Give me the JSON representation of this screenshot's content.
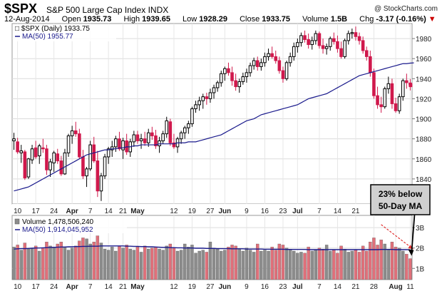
{
  "header": {
    "symbol": "$SPX",
    "name": "S&P 500 Large Cap Index",
    "exchange": "INDX",
    "source": "@ StockCharts.com",
    "date": "12-Aug-2014",
    "open_label": "Open",
    "open": "1935.73",
    "high_label": "High",
    "high": "1939.65",
    "low_label": "Low",
    "low": "1928.29",
    "close_label": "Close",
    "close": "1933.75",
    "volume_label": "Volume",
    "volume": "1.5B",
    "chg_label": "Chg",
    "chg": "-3.17 (-0.16%)"
  },
  "colors": {
    "up": "#000000",
    "down": "#d0184c",
    "ma": "#1a1a8c",
    "vol_down": "#e0707a",
    "vol_up": "#8c8c8c",
    "callout_bg": "#d0d0d0",
    "annotation_arrow": "#e03030"
  },
  "chart_data": [
    {
      "type": "candlestick",
      "legend": [
        "$SPX (Daily) 1933.75",
        "MA(50) 1955.77"
      ],
      "y_ticks": [
        "1840",
        "1860",
        "1880",
        "1900",
        "1920",
        "1940",
        "1960",
        "1980"
      ],
      "ylim": [
        1815,
        1995
      ],
      "x_labels": [
        "10",
        "17",
        "24",
        "Apr",
        "7",
        "14",
        "21",
        "May",
        "12",
        "19",
        "27",
        "Jun",
        "9",
        "16",
        "23",
        "Jul",
        "7",
        "14",
        "21",
        "28",
        "Aug",
        "11"
      ],
      "x_label_index": [
        1,
        6,
        11,
        16,
        21,
        26,
        30,
        34,
        44,
        49,
        54,
        58,
        64,
        69,
        74,
        78,
        84,
        89,
        94,
        99,
        105,
        109
      ],
      "grid": true,
      "ohlc": [
        [
          1878,
          1886,
          1869,
          1880
        ],
        [
          1877,
          1881,
          1865,
          1867
        ],
        [
          1866,
          1874,
          1856,
          1868
        ],
        [
          1867,
          1869,
          1839,
          1841
        ],
        [
          1842,
          1861,
          1840,
          1860
        ],
        [
          1859,
          1874,
          1855,
          1870
        ],
        [
          1871,
          1878,
          1860,
          1862
        ],
        [
          1863,
          1875,
          1855,
          1873
        ],
        [
          1871,
          1880,
          1866,
          1870
        ],
        [
          1870,
          1874,
          1844,
          1849
        ],
        [
          1849,
          1860,
          1842,
          1857
        ],
        [
          1856,
          1868,
          1847,
          1866
        ],
        [
          1865,
          1870,
          1855,
          1858
        ],
        [
          1858,
          1863,
          1843,
          1845
        ],
        [
          1845,
          1870,
          1844,
          1866
        ],
        [
          1866,
          1885,
          1862,
          1883
        ],
        [
          1883,
          1893,
          1875,
          1888
        ],
        [
          1888,
          1897,
          1882,
          1885
        ],
        [
          1885,
          1890,
          1860,
          1862
        ],
        [
          1862,
          1869,
          1840,
          1843
        ],
        [
          1843,
          1852,
          1832,
          1850
        ],
        [
          1850,
          1878,
          1848,
          1874
        ],
        [
          1874,
          1882,
          1856,
          1858
        ],
        [
          1858,
          1868,
          1822,
          1828
        ],
        [
          1828,
          1846,
          1818,
          1843
        ],
        [
          1843,
          1865,
          1840,
          1862
        ],
        [
          1862,
          1872,
          1855,
          1870
        ],
        [
          1869,
          1878,
          1862,
          1872
        ],
        [
          1872,
          1883,
          1867,
          1880
        ],
        [
          1880,
          1887,
          1868,
          1870
        ],
        [
          1869,
          1881,
          1860,
          1878
        ],
        [
          1878,
          1885,
          1864,
          1867
        ],
        [
          1867,
          1880,
          1862,
          1877
        ],
        [
          1877,
          1888,
          1872,
          1884
        ],
        [
          1884,
          1888,
          1875,
          1878
        ],
        [
          1878,
          1885,
          1870,
          1880
        ],
        [
          1880,
          1887,
          1873,
          1876
        ],
        [
          1876,
          1890,
          1872,
          1886
        ],
        [
          1886,
          1892,
          1879,
          1883
        ],
        [
          1883,
          1889,
          1870,
          1873
        ],
        [
          1873,
          1882,
          1866,
          1878
        ],
        [
          1878,
          1888,
          1875,
          1885
        ],
        [
          1885,
          1902,
          1881,
          1898
        ],
        [
          1897,
          1900,
          1873,
          1876
        ],
        [
          1876,
          1885,
          1870,
          1872
        ],
        [
          1872,
          1882,
          1866,
          1880
        ],
        [
          1880,
          1888,
          1875,
          1886
        ],
        [
          1886,
          1893,
          1880,
          1891
        ],
        [
          1891,
          1898,
          1885,
          1895
        ],
        [
          1895,
          1912,
          1892,
          1910
        ],
        [
          1910,
          1918,
          1906,
          1914
        ],
        [
          1914,
          1922,
          1908,
          1918
        ],
        [
          1918,
          1925,
          1910,
          1922
        ],
        [
          1922,
          1926,
          1914,
          1920
        ],
        [
          1920,
          1930,
          1916,
          1926
        ],
        [
          1926,
          1934,
          1920,
          1931
        ],
        [
          1931,
          1938,
          1927,
          1936
        ],
        [
          1936,
          1948,
          1932,
          1945
        ],
        [
          1945,
          1952,
          1938,
          1950
        ],
        [
          1950,
          1956,
          1943,
          1946
        ],
        [
          1946,
          1952,
          1933,
          1938
        ],
        [
          1938,
          1945,
          1928,
          1932
        ],
        [
          1932,
          1940,
          1926,
          1937
        ],
        [
          1937,
          1946,
          1934,
          1942
        ],
        [
          1942,
          1950,
          1936,
          1946
        ],
        [
          1946,
          1956,
          1942,
          1953
        ],
        [
          1953,
          1961,
          1949,
          1958
        ],
        [
          1958,
          1962,
          1948,
          1952
        ],
        [
          1952,
          1960,
          1948,
          1956
        ],
        [
          1956,
          1966,
          1952,
          1962
        ],
        [
          1962,
          1970,
          1958,
          1965
        ],
        [
          1965,
          1972,
          1960,
          1962
        ],
        [
          1962,
          1968,
          1955,
          1958
        ],
        [
          1958,
          1962,
          1945,
          1948
        ],
        [
          1948,
          1952,
          1936,
          1940
        ],
        [
          1940,
          1958,
          1938,
          1956
        ],
        [
          1956,
          1966,
          1952,
          1962
        ],
        [
          1962,
          1976,
          1958,
          1972
        ],
        [
          1972,
          1980,
          1966,
          1976
        ],
        [
          1976,
          1986,
          1972,
          1983
        ],
        [
          1983,
          1988,
          1976,
          1979
        ],
        [
          1979,
          1985,
          1970,
          1974
        ],
        [
          1974,
          1982,
          1969,
          1978
        ],
        [
          1978,
          1988,
          1974,
          1985
        ],
        [
          1985,
          1987,
          1970,
          1973
        ],
        [
          1973,
          1980,
          1965,
          1970
        ],
        [
          1970,
          1975,
          1964,
          1972
        ],
        [
          1972,
          1982,
          1968,
          1980
        ],
        [
          1980,
          1986,
          1974,
          1977
        ],
        [
          1977,
          1983,
          1966,
          1970
        ],
        [
          1970,
          1977,
          1960,
          1962
        ],
        [
          1962,
          1980,
          1960,
          1978
        ],
        [
          1978,
          1988,
          1974,
          1985
        ],
        [
          1985,
          1990,
          1980,
          1986
        ],
        [
          1986,
          1992,
          1978,
          1982
        ],
        [
          1982,
          1986,
          1974,
          1978
        ],
        [
          1978,
          1982,
          1965,
          1968
        ],
        [
          1968,
          1972,
          1958,
          1962
        ],
        [
          1962,
          1968,
          1942,
          1946
        ],
        [
          1946,
          1950,
          1920,
          1923
        ],
        [
          1923,
          1932,
          1910,
          1914
        ],
        [
          1914,
          1922,
          1906,
          1912
        ],
        [
          1912,
          1932,
          1910,
          1930
        ],
        [
          1930,
          1942,
          1925,
          1935
        ],
        [
          1935,
          1940,
          1910,
          1915
        ],
        [
          1915,
          1921,
          1906,
          1908
        ],
        [
          1908,
          1925,
          1905,
          1922
        ],
        [
          1922,
          1940,
          1918,
          1938
        ],
        [
          1938,
          1945,
          1930,
          1936
        ],
        [
          1935.73,
          1939.65,
          1928.29,
          1933.75
        ]
      ],
      "ma50": [
        1828,
        1829,
        1830,
        1831,
        1832,
        1834,
        1836,
        1838,
        1840,
        1842,
        1844,
        1846,
        1848,
        1850,
        1852,
        1854,
        1856,
        1858,
        1860,
        1862,
        1864,
        1865,
        1866,
        1867,
        1868,
        1869,
        1869,
        1870,
        1870,
        1871,
        1871,
        1872,
        1872,
        1873,
        1873,
        1874,
        1874,
        1874,
        1874,
        1874,
        1875,
        1875,
        1875,
        1875,
        1875,
        1876,
        1876,
        1876,
        1877,
        1877,
        1877,
        1878,
        1879,
        1880,
        1881,
        1882,
        1883,
        1884,
        1886,
        1888,
        1890,
        1892,
        1894,
        1896,
        1898,
        1899,
        1900,
        1902,
        1904,
        1905,
        1906,
        1907,
        1908,
        1909,
        1910,
        1911,
        1912,
        1913,
        1914,
        1916,
        1918,
        1920,
        1921,
        1922,
        1923,
        1924,
        1925,
        1927,
        1929,
        1931,
        1933,
        1935,
        1937,
        1939,
        1941,
        1943,
        1944,
        1945,
        1946,
        1947,
        1948,
        1949,
        1950,
        1951,
        1952,
        1953,
        1954,
        1955,
        1955,
        1955.5,
        1955.77
      ]
    },
    {
      "type": "bar",
      "legend": [
        "Volume 1,478,506,240",
        "MA(50) 1,914,045,952"
      ],
      "y_ticks": [
        "1B",
        "2B",
        "3B"
      ],
      "ylim": [
        0.45,
        3.6
      ],
      "unit": "billions of shares",
      "x_labels": [
        "10",
        "17",
        "24",
        "Apr",
        "7",
        "14",
        "21",
        "May",
        "12",
        "19",
        "27",
        "Jun",
        "9",
        "16",
        "23",
        "Jul",
        "7",
        "14",
        "21",
        "28",
        "Aug",
        "11"
      ],
      "x_label_index": [
        1,
        6,
        11,
        16,
        21,
        26,
        30,
        34,
        44,
        49,
        54,
        58,
        64,
        69,
        74,
        78,
        84,
        89,
        94,
        99,
        105,
        109
      ],
      "volume": [
        2.05,
        2.15,
        1.9,
        2.25,
        1.95,
        2.0,
        2.1,
        1.85,
        2.0,
        2.3,
        2.1,
        2.05,
        2.2,
        2.3,
        2.05,
        1.9,
        2.0,
        2.1,
        2.35,
        2.5,
        2.45,
        2.2,
        2.3,
        2.6,
        2.25,
        1.95,
        1.9,
        2.05,
        1.85,
        2.1,
        2.0,
        2.15,
        1.95,
        1.9,
        2.05,
        1.8,
        2.1,
        1.95,
        2.0,
        2.05,
        1.95,
        1.9,
        2.1,
        2.2,
        2.0,
        1.85,
        1.9,
        2.2,
        2.05,
        2.15,
        1.75,
        1.85,
        1.9,
        1.8,
        2.3,
        2.0,
        1.95,
        1.85,
        1.9,
        2.05,
        2.15,
        2.1,
        1.95,
        1.85,
        2.0,
        1.9,
        1.8,
        2.2,
        1.85,
        1.9,
        1.85,
        2.05,
        1.9,
        2.2,
        2.15,
        2.0,
        1.95,
        1.85,
        1.75,
        1.8,
        1.75,
        2.05,
        1.85,
        1.9,
        2.0,
        1.95,
        2.15,
        1.85,
        1.9,
        1.75,
        2.1,
        1.95,
        1.8,
        1.85,
        1.9,
        1.8,
        2.1,
        1.85,
        2.3,
        2.5,
        2.15,
        2.4,
        2.2,
        1.95,
        2.3,
        2.05,
        2.0,
        1.85,
        1.7,
        1.48
      ],
      "vol_ma50": [
        1.95,
        1.96,
        1.97,
        1.97,
        1.98,
        1.99,
        2.0,
        2.0,
        2.01,
        2.02,
        2.03,
        2.03,
        2.04,
        2.05,
        2.05,
        2.06,
        2.06,
        2.07,
        2.07,
        2.08,
        2.08,
        2.09,
        2.09,
        2.09,
        2.1,
        2.1,
        2.1,
        2.1,
        2.1,
        2.1,
        2.1,
        2.09,
        2.09,
        2.08,
        2.08,
        2.07,
        2.07,
        2.06,
        2.06,
        2.05,
        2.04,
        2.03,
        2.03,
        2.02,
        2.02,
        2.01,
        2.01,
        2.0,
        2.0,
        2.0,
        1.99,
        1.99,
        1.99,
        1.98,
        1.98,
        1.98,
        1.97,
        1.97,
        1.97,
        1.97,
        1.96,
        1.96,
        1.96,
        1.96,
        1.95,
        1.95,
        1.95,
        1.95,
        1.95,
        1.94,
        1.94,
        1.94,
        1.94,
        1.94,
        1.94,
        1.93,
        1.93,
        1.93,
        1.93,
        1.93,
        1.93,
        1.92,
        1.92,
        1.92,
        1.92,
        1.92,
        1.92,
        1.92,
        1.92,
        1.92,
        1.92,
        1.92,
        1.92,
        1.92,
        1.92,
        1.92,
        1.92,
        1.92,
        1.92,
        1.92,
        1.92,
        1.93,
        1.93,
        1.93,
        1.93,
        1.92,
        1.92,
        1.92,
        1.92,
        1.914
      ]
    }
  ],
  "annotation": {
    "line1": "23% below",
    "line2": "50-Day MA"
  }
}
